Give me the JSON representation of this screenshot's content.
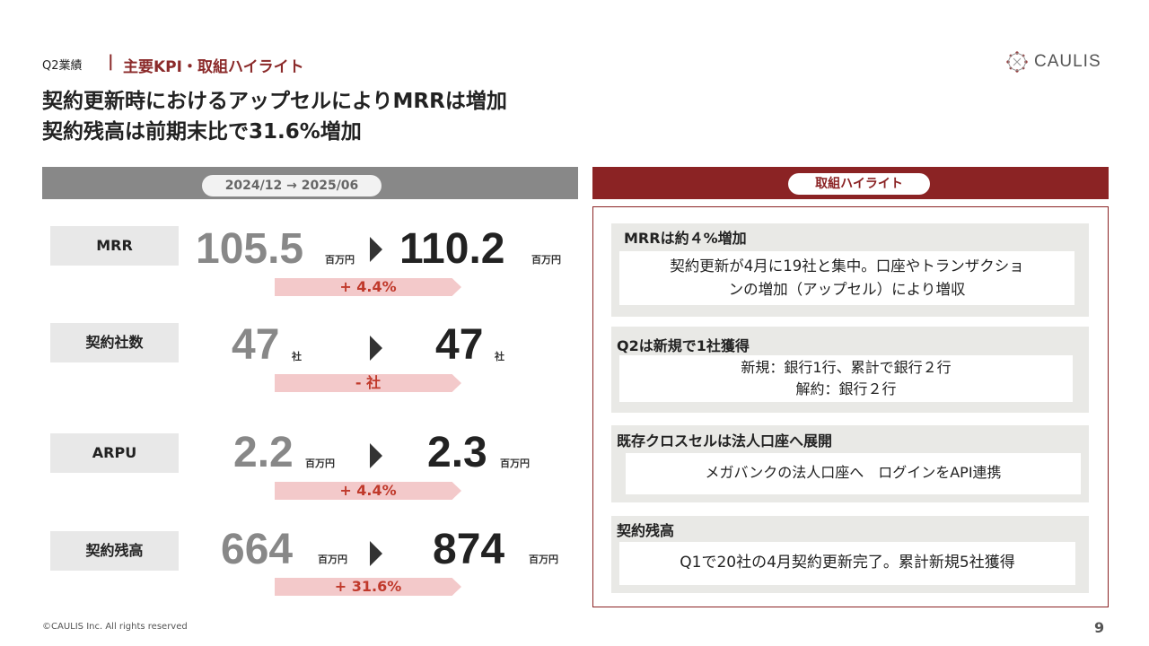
{
  "header": {
    "section": "Q2業績",
    "separator": "|",
    "highlight": "主要KPI・取組ハイライト",
    "headline_line1": "契約更新時におけるアップセルによりMRRは増加",
    "headline_line2": "契約残高は前期末比で31.6%増加"
  },
  "logo": {
    "text": "CAULIS",
    "accent_color": "#8b2324"
  },
  "left_panel": {
    "period": "2024/12 → 2025/06",
    "kpis": [
      {
        "label": "MRR",
        "before": "105.5",
        "before_unit": "百万円",
        "after": "110.2",
        "after_unit": "百万円",
        "change": "+ 4.4%"
      },
      {
        "label": "契約社数",
        "before": "47",
        "before_unit": "社",
        "after": "47",
        "after_unit": "社",
        "change": "- 社"
      },
      {
        "label": "ARPU",
        "before": "2.2",
        "before_unit": "百万円",
        "after": "2.3",
        "after_unit": "百万円",
        "change": "+ 4.4%"
      },
      {
        "label": "契約残高",
        "before": "664",
        "before_unit": "百万円",
        "after": "874",
        "after_unit": "百万円",
        "change": "+ 31.6%"
      }
    ]
  },
  "right_panel": {
    "title": "取組ハイライト",
    "cards": [
      {
        "title": "MRRは約４%増加",
        "line1": "契約更新が4月に19社と集中。口座やトランザクショ",
        "line2": "ンの増加（アップセル）により増収"
      },
      {
        "title": "Q2は新規で1社獲得",
        "line1": "新規：銀行1行、累計で銀行２行",
        "line2": "解約：銀行２行"
      },
      {
        "title": "既存クロスセルは法人口座へ展開",
        "line1": "メガバンクの法人口座へ　ログインをAPI連携"
      },
      {
        "title": "契約残高",
        "line1": "Q1で20社の4月契約更新完了。累計新規5社獲得"
      }
    ]
  },
  "footer": {
    "copyright": "©CAULIS Inc. All rights reserved",
    "page": "9"
  }
}
